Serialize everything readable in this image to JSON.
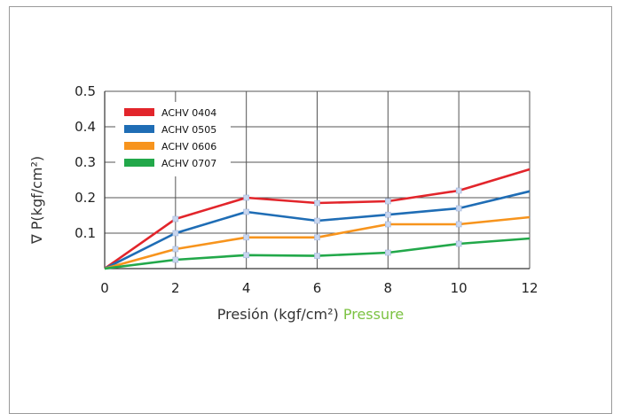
{
  "chart_data": {
    "type": "line",
    "x": [
      0,
      2,
      4,
      6,
      8,
      10,
      12
    ],
    "xlim": [
      0,
      12
    ],
    "ylim": [
      0,
      0.5
    ],
    "x_ticks": [
      "0",
      "2",
      "4",
      "6",
      "8",
      "10",
      "12"
    ],
    "y_ticks": [
      "0.1",
      "0.2",
      "0.3",
      "0.4",
      "0.5"
    ],
    "xlabel_es": "Presión (kgf/cm²)",
    "xlabel_en": "Pressure",
    "ylabel": "∇ P(kgf/cm²)",
    "grid": true,
    "legend_position": "top-left",
    "series": [
      {
        "name": "ACHV 0404",
        "color": "#e2252b",
        "values": [
          0,
          0.14,
          0.2,
          0.185,
          0.19,
          0.22,
          0.28
        ]
      },
      {
        "name": "ACHV 0505",
        "color": "#1f6db5",
        "values": [
          0,
          0.1,
          0.16,
          0.135,
          0.152,
          0.17,
          0.218
        ]
      },
      {
        "name": "ACHV 0606",
        "color": "#f7941d",
        "values": [
          0,
          0.055,
          0.088,
          0.088,
          0.125,
          0.125,
          0.145
        ]
      },
      {
        "name": "ACHV 0707",
        "color": "#22a84a",
        "values": [
          0,
          0.025,
          0.038,
          0.036,
          0.045,
          0.07,
          0.085
        ]
      }
    ]
  }
}
